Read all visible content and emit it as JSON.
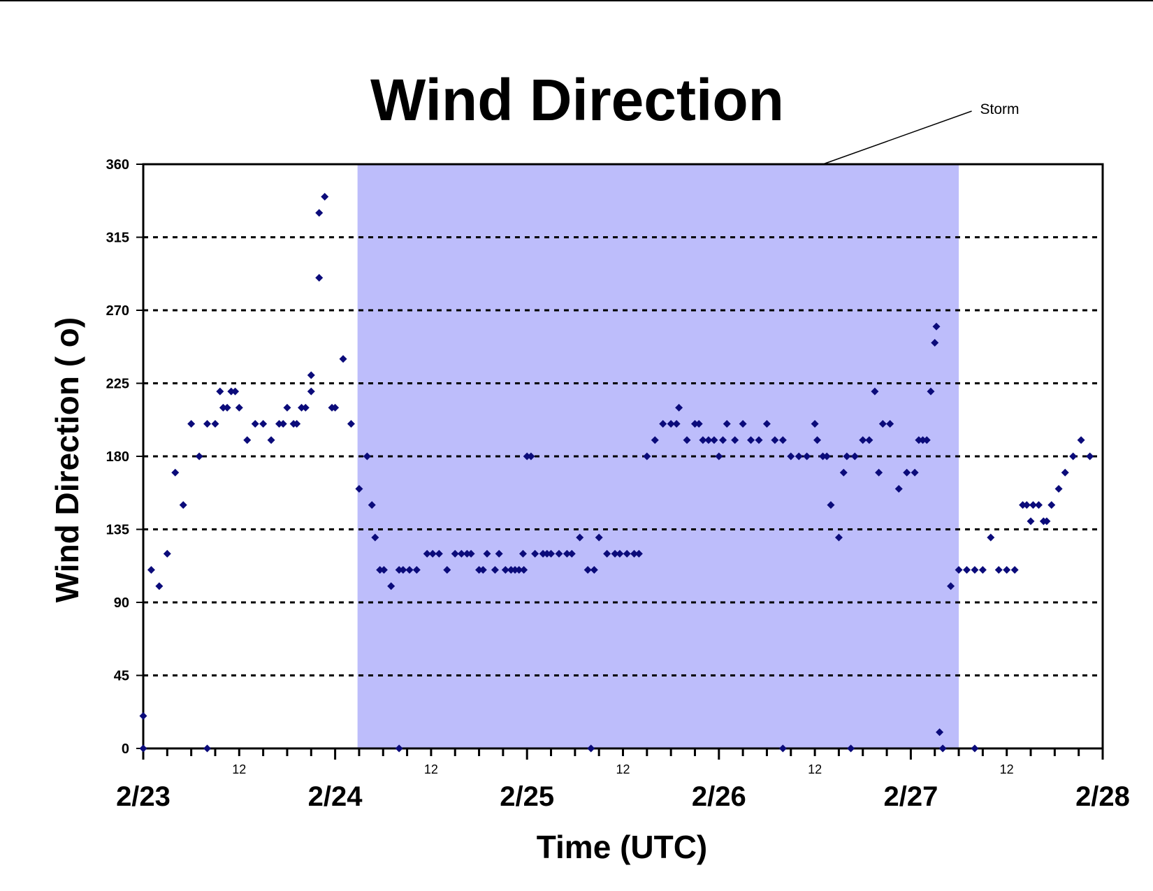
{
  "chart_data": {
    "type": "scatter",
    "title": "Wind Direction",
    "xlabel": "Time (UTC)",
    "ylabel": "Wind Direction ( o)",
    "xlim": [
      0,
      120
    ],
    "ylim": [
      0,
      360
    ],
    "yticks": [
      0,
      45,
      90,
      135,
      180,
      225,
      270,
      315,
      360
    ],
    "ytick_labels": [
      "0",
      "45",
      "90",
      "135",
      "180",
      "225",
      "270",
      "315",
      "360"
    ],
    "day_ticks": [
      {
        "x": 0,
        "label": "2/23"
      },
      {
        "x": 24,
        "label": "2/24"
      },
      {
        "x": 48,
        "label": "2/25"
      },
      {
        "x": 72,
        "label": "2/26"
      },
      {
        "x": 96,
        "label": "2/27"
      },
      {
        "x": 120,
        "label": "2/28"
      }
    ],
    "hour_ticks": [
      {
        "x": 12,
        "label": "12"
      },
      {
        "x": 36,
        "label": "12"
      },
      {
        "x": 60,
        "label": "12"
      },
      {
        "x": 84,
        "label": "12"
      },
      {
        "x": 108,
        "label": "12"
      }
    ],
    "minor_tick_interval_hours": 3,
    "grid": "horizontal dotted",
    "shaded_region": {
      "x_start": 26.8,
      "x_end": 102,
      "color": "#BDBDFB"
    },
    "annotation": {
      "text": "Storm",
      "x": 85,
      "y": 360
    },
    "marker_color": "#0B0B7A",
    "series": [
      {
        "points": [
          [
            0,
            0
          ],
          [
            0,
            20
          ],
          [
            1,
            110
          ],
          [
            2,
            100
          ],
          [
            3,
            120
          ],
          [
            4,
            170
          ],
          [
            5,
            150
          ],
          [
            6,
            200
          ],
          [
            7,
            180
          ],
          [
            8,
            200
          ],
          [
            8,
            0
          ],
          [
            9,
            200
          ],
          [
            9.6,
            220
          ],
          [
            10,
            210
          ],
          [
            10.5,
            210
          ],
          [
            11,
            220
          ],
          [
            11.5,
            220
          ],
          [
            12,
            210
          ],
          [
            13,
            190
          ],
          [
            14,
            200
          ],
          [
            15,
            200
          ],
          [
            16,
            190
          ],
          [
            17,
            200
          ],
          [
            17.5,
            200
          ],
          [
            18,
            210
          ],
          [
            18.8,
            200
          ],
          [
            19.2,
            200
          ],
          [
            19.8,
            210
          ],
          [
            20.3,
            210
          ],
          [
            21,
            220
          ],
          [
            21,
            230
          ],
          [
            22,
            330
          ],
          [
            22,
            290
          ],
          [
            22.7,
            340
          ],
          [
            23.6,
            210
          ],
          [
            24,
            210
          ],
          [
            25,
            240
          ],
          [
            26,
            200
          ],
          [
            27,
            160
          ],
          [
            28,
            180
          ],
          [
            28.6,
            150
          ],
          [
            29,
            130
          ],
          [
            29.6,
            110
          ],
          [
            30.1,
            110
          ],
          [
            31,
            100
          ],
          [
            32,
            110
          ],
          [
            32.5,
            110
          ],
          [
            32,
            0
          ],
          [
            33.3,
            110
          ],
          [
            34.2,
            110
          ],
          [
            35.5,
            120
          ],
          [
            36.2,
            120
          ],
          [
            37,
            120
          ],
          [
            38,
            110
          ],
          [
            39,
            120
          ],
          [
            39.8,
            120
          ],
          [
            40.5,
            120
          ],
          [
            41,
            120
          ],
          [
            42,
            110
          ],
          [
            42.5,
            110
          ],
          [
            43,
            120
          ],
          [
            44,
            110
          ],
          [
            44.5,
            120
          ],
          [
            45.3,
            110
          ],
          [
            46,
            110
          ],
          [
            46.5,
            110
          ],
          [
            47,
            110
          ],
          [
            47.5,
            120
          ],
          [
            47.6,
            110
          ],
          [
            48,
            180
          ],
          [
            48.5,
            180
          ],
          [
            49,
            120
          ],
          [
            50,
            120
          ],
          [
            50.5,
            120
          ],
          [
            51,
            120
          ],
          [
            52,
            120
          ],
          [
            53,
            120
          ],
          [
            53.6,
            120
          ],
          [
            54.6,
            130
          ],
          [
            55.6,
            110
          ],
          [
            56,
            0
          ],
          [
            56.4,
            110
          ],
          [
            57,
            130
          ],
          [
            58,
            120
          ],
          [
            59,
            120
          ],
          [
            59.6,
            120
          ],
          [
            60.5,
            120
          ],
          [
            61.4,
            120
          ],
          [
            62,
            120
          ],
          [
            63,
            180
          ],
          [
            64,
            190
          ],
          [
            65,
            200
          ],
          [
            66,
            200
          ],
          [
            66.7,
            200
          ],
          [
            67,
            210
          ],
          [
            68,
            190
          ],
          [
            69,
            200
          ],
          [
            69.5,
            200
          ],
          [
            70,
            190
          ],
          [
            70.7,
            190
          ],
          [
            71.4,
            190
          ],
          [
            72,
            180
          ],
          [
            72.5,
            190
          ],
          [
            73,
            200
          ],
          [
            74,
            190
          ],
          [
            75,
            200
          ],
          [
            76,
            190
          ],
          [
            77,
            190
          ],
          [
            78,
            200
          ],
          [
            79,
            190
          ],
          [
            80,
            190
          ],
          [
            80,
            0
          ],
          [
            81,
            180
          ],
          [
            82,
            180
          ],
          [
            83,
            180
          ],
          [
            84,
            200
          ],
          [
            84.3,
            190
          ],
          [
            85,
            180
          ],
          [
            85.5,
            180
          ],
          [
            86,
            150
          ],
          [
            87,
            130
          ],
          [
            87.6,
            170
          ],
          [
            88,
            180
          ],
          [
            88.5,
            0
          ],
          [
            89,
            180
          ],
          [
            90,
            190
          ],
          [
            90.8,
            190
          ],
          [
            91.5,
            220
          ],
          [
            92,
            170
          ],
          [
            92.5,
            200
          ],
          [
            93.4,
            200
          ],
          [
            94.5,
            160
          ],
          [
            95.5,
            170
          ],
          [
            96.5,
            170
          ],
          [
            97,
            190
          ],
          [
            97.5,
            190
          ],
          [
            98,
            190
          ],
          [
            98.5,
            220
          ],
          [
            99,
            250
          ],
          [
            99.2,
            260
          ],
          [
            99.6,
            10
          ],
          [
            100,
            0
          ],
          [
            101,
            100
          ],
          [
            102,
            110
          ],
          [
            103,
            110
          ],
          [
            104,
            110
          ],
          [
            104,
            0
          ],
          [
            105,
            110
          ],
          [
            106,
            130
          ],
          [
            107,
            110
          ],
          [
            108,
            110
          ],
          [
            109,
            110
          ],
          [
            110,
            150
          ],
          [
            110.5,
            150
          ],
          [
            111,
            140
          ],
          [
            111.3,
            150
          ],
          [
            112,
            150
          ],
          [
            112.6,
            140
          ],
          [
            113,
            140
          ],
          [
            113.6,
            150
          ],
          [
            114.5,
            160
          ],
          [
            115.3,
            170
          ],
          [
            116.3,
            180
          ],
          [
            117.3,
            190
          ],
          [
            118.4,
            180
          ]
        ]
      }
    ]
  }
}
